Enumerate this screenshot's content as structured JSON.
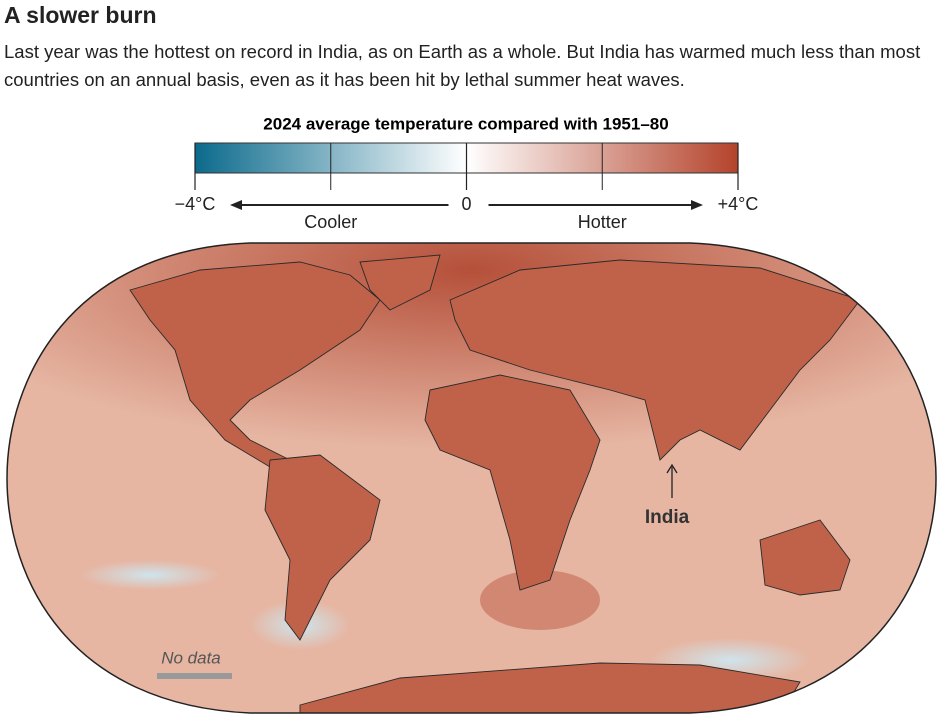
{
  "header": {
    "title": "A slower burn",
    "subtitle": "Last year was the hottest on record in India, as on Earth as a whole. But India has warmed much less than most countries on an annual basis, even as it has been hit by lethal summer heat waves."
  },
  "legend": {
    "title": "2024 average temperature compared with 1951–80",
    "lim": [
      -4,
      4
    ],
    "ticks": [
      {
        "value": -4,
        "label": "−4°C"
      },
      0,
      {
        "value": 4,
        "label": "+4°C"
      }
    ],
    "minor_ticks": [
      -2,
      2
    ],
    "colors": [
      "#0b6a8c",
      "#ffffff",
      "#b4432b"
    ],
    "cooler": "Cooler",
    "hotter": "Hotter"
  },
  "map": {
    "annotation": "India",
    "no_data": "No data"
  }
}
